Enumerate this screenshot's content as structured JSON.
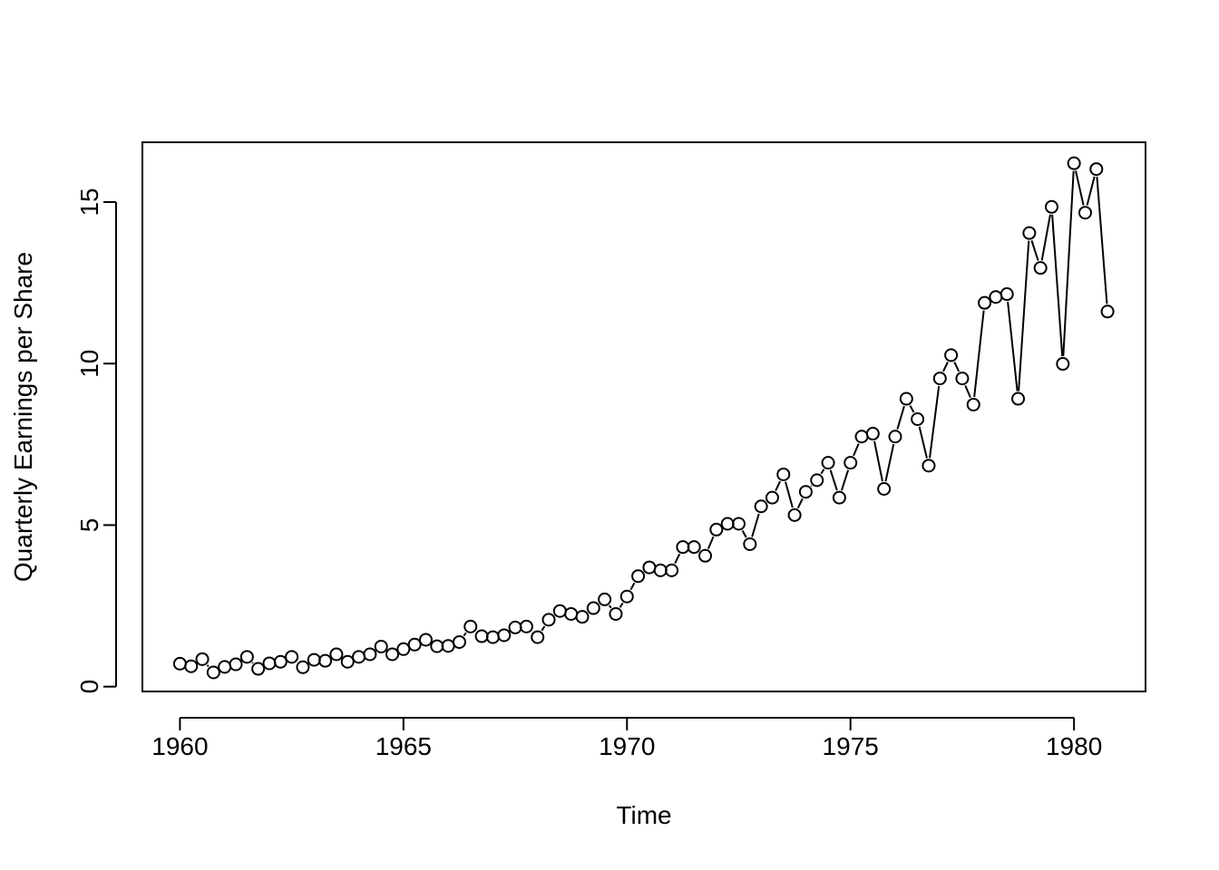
{
  "chart_data": {
    "type": "line",
    "markers": "open-circle",
    "xlabel": "Time",
    "ylabel": "Quarterly Earnings per Share",
    "xlim": [
      1959.16,
      1981.6
    ],
    "ylim": [
      -0.15,
      16.85
    ],
    "xticks": [
      1960,
      1965,
      1970,
      1975,
      1980
    ],
    "yticks": [
      0,
      5,
      10,
      15
    ],
    "series": [
      {
        "x": [
          1960.0,
          1960.25,
          1960.5,
          1960.75,
          1961.0,
          1961.25,
          1961.5,
          1961.75,
          1962.0,
          1962.25,
          1962.5,
          1962.75,
          1963.0,
          1963.25,
          1963.5,
          1963.75,
          1964.0,
          1964.25,
          1964.5,
          1964.75,
          1965.0,
          1965.25,
          1965.5,
          1965.75,
          1966.0,
          1966.25,
          1966.5,
          1966.75,
          1967.0,
          1967.25,
          1967.5,
          1967.75,
          1968.0,
          1968.25,
          1968.5,
          1968.75,
          1969.0,
          1969.25,
          1969.5,
          1969.75,
          1970.0,
          1970.25,
          1970.5,
          1970.75,
          1971.0,
          1971.25,
          1971.5,
          1971.75,
          1972.0,
          1972.25,
          1972.5,
          1972.75,
          1973.0,
          1973.25,
          1973.5,
          1973.75,
          1974.0,
          1974.25,
          1974.5,
          1974.75,
          1975.0,
          1975.25,
          1975.5,
          1975.75,
          1976.0,
          1976.25,
          1976.5,
          1976.75,
          1977.0,
          1977.25,
          1977.5,
          1977.75,
          1978.0,
          1978.25,
          1978.5,
          1978.75,
          1979.0,
          1979.25,
          1979.5,
          1979.75,
          1980.0,
          1980.25,
          1980.5,
          1980.75
        ],
        "values": [
          0.71,
          0.63,
          0.85,
          0.44,
          0.61,
          0.69,
          0.92,
          0.55,
          0.72,
          0.77,
          0.92,
          0.6,
          0.83,
          0.8,
          1.0,
          0.77,
          0.92,
          1.0,
          1.24,
          1.0,
          1.16,
          1.3,
          1.45,
          1.25,
          1.26,
          1.38,
          1.86,
          1.56,
          1.53,
          1.59,
          1.83,
          1.86,
          1.53,
          2.07,
          2.34,
          2.25,
          2.16,
          2.43,
          2.7,
          2.25,
          2.79,
          3.42,
          3.69,
          3.6,
          3.6,
          4.32,
          4.32,
          4.05,
          4.86,
          5.04,
          5.04,
          4.41,
          5.58,
          5.85,
          6.57,
          5.31,
          6.03,
          6.39,
          6.93,
          5.85,
          6.93,
          7.74,
          7.83,
          6.12,
          7.74,
          8.91,
          8.28,
          6.84,
          9.54,
          10.26,
          9.54,
          8.73,
          11.88,
          12.06,
          12.15,
          8.91,
          14.04,
          12.96,
          14.85,
          9.99,
          16.2,
          14.67,
          16.02,
          11.61
        ]
      }
    ],
    "grid": false,
    "legend": "none",
    "colors": {
      "line": "#000000",
      "axes": "#000000",
      "background": "#ffffff"
    }
  }
}
